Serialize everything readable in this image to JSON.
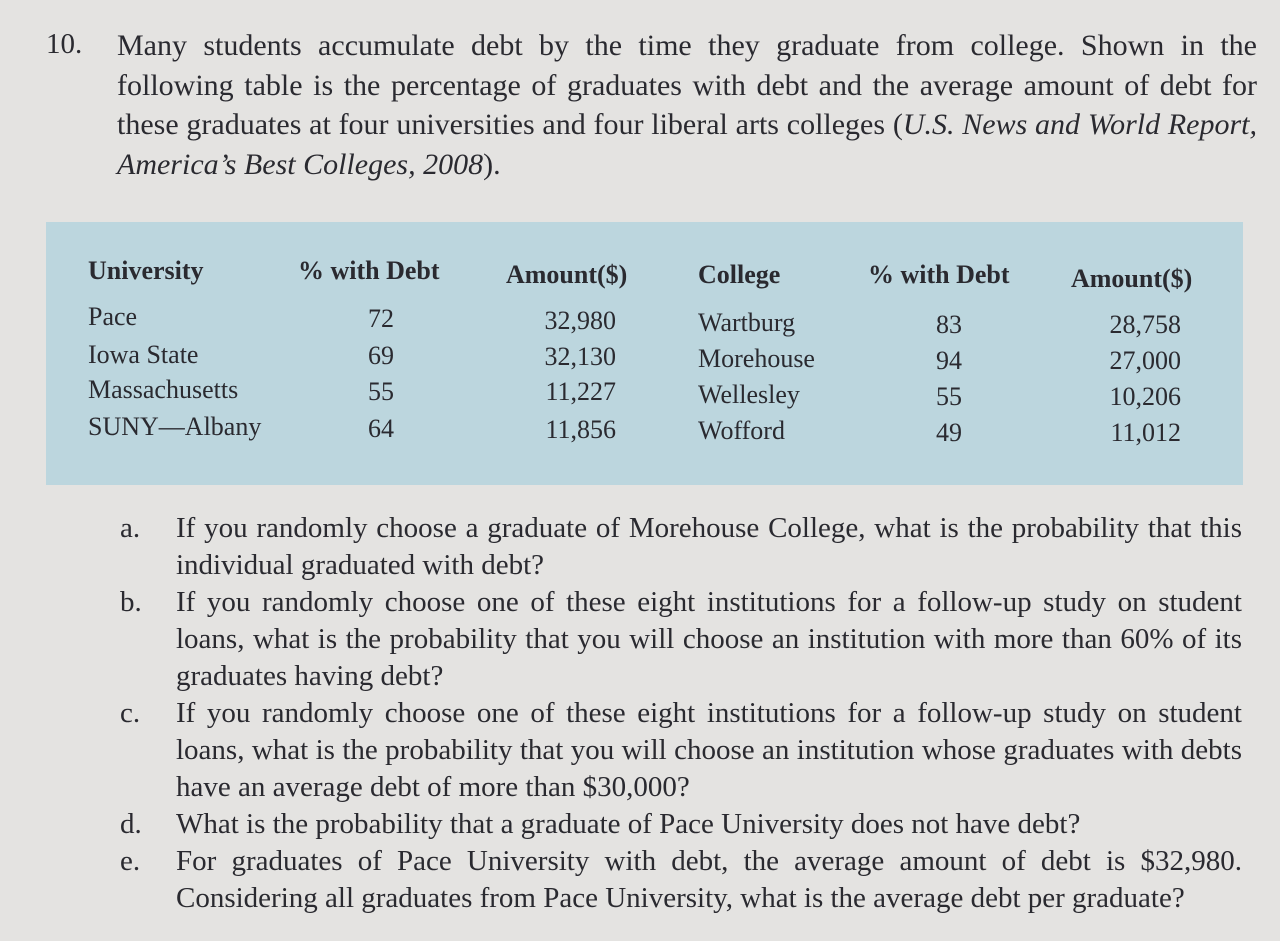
{
  "problem": {
    "number": "10.",
    "intro_text": "Many students accumulate debt by the time they graduate from college. Shown in the following table is the percentage of graduates with debt and the average amount of debt for these graduates at four universities and four liberal arts colleges (",
    "source_italic": "U.S. News and World Report, America’s Best Colleges, 2008",
    "intro_end": ")."
  },
  "table": {
    "headers": {
      "university": "University",
      "pct_debt_left": "% with Debt",
      "amount_left": "Amount($)",
      "college": "College",
      "pct_debt_right": "% with Debt",
      "amount_right": "Amount($)"
    },
    "universities": [
      {
        "name": "Pace",
        "pct": "72",
        "amount": "32,980"
      },
      {
        "name": "Iowa State",
        "pct": "69",
        "amount": "32,130"
      },
      {
        "name": "Massachusetts",
        "pct": "55",
        "amount": "11,227"
      },
      {
        "name": "SUNY—Albany",
        "pct": "64",
        "amount": "11,856"
      }
    ],
    "colleges": [
      {
        "name": "Wartburg",
        "pct": "83",
        "amount": "28,758"
      },
      {
        "name": "Morehouse",
        "pct": "94",
        "amount": "27,000"
      },
      {
        "name": "Wellesley",
        "pct": "55",
        "amount": "10,206"
      },
      {
        "name": "Wofford",
        "pct": "49",
        "amount": "11,012"
      }
    ]
  },
  "questions": [
    {
      "label": "a.",
      "text": "If you randomly choose a graduate of Morehouse College, what is the probability that this individual graduated with debt?"
    },
    {
      "label": "b.",
      "text": "If you randomly choose one of these eight institutions for a follow-up study on student loans, what is the probability that you will choose an institution with more than 60% of its graduates having debt?"
    },
    {
      "label": "c.",
      "text": "If you randomly choose one of these eight institutions for a follow-up study on student loans, what is the probability that you will choose an institution whose graduates with debts have an average debt of more than $30,000?"
    },
    {
      "label": "d.",
      "text": "What is the probability that a graduate of Pace University does not have debt?"
    },
    {
      "label": "e.",
      "text": "For graduates of Pace University with debt, the average amount of debt is $32,980. Considering all graduates from Pace University, what is the average debt per graduate?"
    }
  ]
}
